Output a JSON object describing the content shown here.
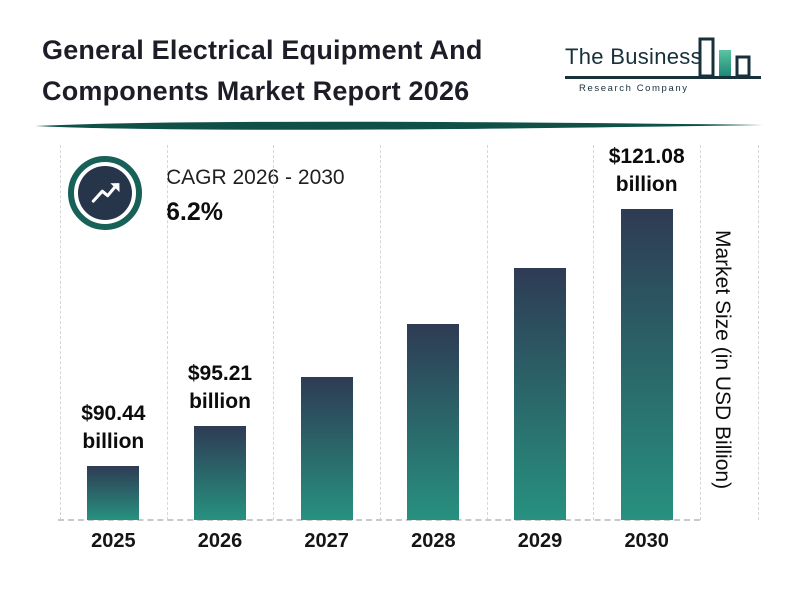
{
  "header": {
    "title_lines": [
      "General Electrical Equipment And",
      "Components Market Report 2026"
    ],
    "logo": {
      "name": "The Business",
      "subtitle": "Research Company"
    }
  },
  "cagr": {
    "label": "CAGR 2026 - 2030",
    "value": "6.2%"
  },
  "chart_data": {
    "type": "bar",
    "title": "General Electrical Equipment And Components Market Report 2026",
    "categories": [
      "2025",
      "2026",
      "2027",
      "2028",
      "2029",
      "2030"
    ],
    "values": [
      90.44,
      95.21,
      101.11,
      107.38,
      114.04,
      121.08
    ],
    "value_labels": [
      {
        "amount": "$90.44",
        "unit": "billion"
      },
      {
        "amount": "$95.21",
        "unit": "billion"
      },
      null,
      null,
      null,
      {
        "amount": "$121.08",
        "unit": "billion"
      }
    ],
    "xlabel": "",
    "ylabel": "Market Size (in USD Billion)",
    "ylim": [
      84,
      124
    ],
    "grid": "vertical-dashed",
    "legend": "none"
  },
  "colors": {
    "bar_gradient_top": "#2e3b54",
    "bar_gradient_bottom": "#27917f",
    "divider_teal": "#0f5147",
    "badge_ring": "#186158",
    "badge_inner": "#27354a",
    "logo_dark": "#17303a",
    "logo_green": "#2ba98e",
    "grid_line": "#d6d6d6"
  }
}
